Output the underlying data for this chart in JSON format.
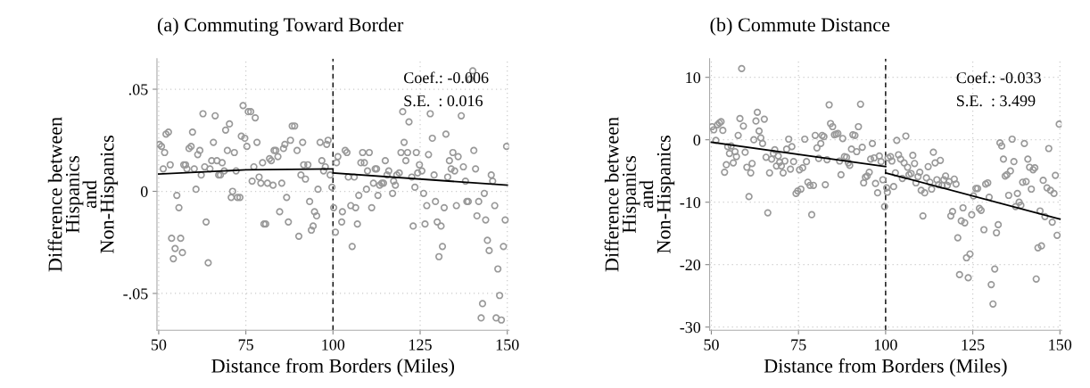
{
  "chart_data": [
    {
      "type": "scatter",
      "title": "(a) Commuting Toward Border",
      "xlabel": "Distance from Borders (Miles)",
      "ylabel": "Difference between\nHispanics\nand\nNon-Hispanics",
      "xlim": [
        49.5,
        150.5
      ],
      "ylim": [
        -0.068,
        0.065
      ],
      "xticks": [
        50,
        75,
        100,
        125,
        150
      ],
      "yticks": [
        {
          "value": 0.05,
          "label": ".05"
        },
        0,
        {
          "value": -0.05,
          "label": "-.05"
        }
      ],
      "grid": true,
      "annotations": [
        "Coef.: -0.006",
        "S.E.  : 0.016"
      ],
      "ref_lines": [
        {
          "axis": "x",
          "value": 100,
          "color": "#000000",
          "line_style": "dashed"
        }
      ],
      "series": [
        {
          "color": "#999999",
          "marker": "circle",
          "x": [
            50.2,
            50.8,
            51.3,
            51.7,
            52.1,
            52.8,
            53.3,
            53.7,
            54.7,
            54.2,
            55.2,
            55.8,
            56.3,
            56.8,
            57.2,
            57.7,
            58.1,
            58.7,
            59.3,
            59.7,
            60.2,
            60.7,
            61.2,
            61.8,
            62.2,
            62.7,
            63.2,
            63.6,
            64.2,
            64.7,
            65.2,
            65.7,
            66.2,
            66.7,
            67.2,
            67.7,
            68.2,
            68.8,
            69.2,
            69.7,
            70.3,
            70.8,
            71.2,
            71.7,
            72.2,
            72.6,
            73.3,
            73.7,
            74.2,
            74.7,
            75.3,
            75.7,
            76.4,
            76.8,
            77.3,
            77.7,
            78.2,
            78.8,
            79.3,
            79.8,
            80.2,
            80.7,
            81.2,
            81.8,
            82.3,
            82.8,
            83.1,
            83.6,
            84.2,
            84.7,
            85.3,
            85.8,
            86.2,
            86.7,
            87.2,
            87.8,
            88.3,
            89.0,
            89.7,
            90.2,
            90.8,
            91.3,
            91.6,
            92.1,
            92.8,
            93.3,
            93.8,
            94.3,
            94.7,
            95.3,
            95.7,
            96.3,
            96.8,
            97.3,
            97.8,
            98.2,
            98.6,
            99.2,
            99.7,
            100.2,
            100.7,
            101.4,
            101.0,
            102.7,
            102.5,
            103.5,
            104.0,
            104.4,
            105.1,
            105.5,
            106.1,
            106.5,
            107.0,
            107.4,
            108.0,
            108.5,
            109.0,
            109.6,
            109.9,
            110.4,
            111.1,
            111.6,
            112.1,
            112.5,
            112.9,
            113.4,
            114.0,
            114.5,
            115.0,
            115.5,
            116.0,
            117.1,
            117.4,
            117.9,
            118.3,
            119.0,
            119.5,
            120.0,
            120.4,
            120.9,
            121.4,
            121.8,
            122.6,
            123.0,
            123.5,
            123.9,
            124.3,
            124.8,
            125.5,
            126.0,
            126.4,
            126.9,
            127.4,
            127.9,
            128.5,
            129.0,
            129.4,
            129.9,
            130.4,
            131.0,
            131.4,
            131.9,
            132.4,
            132.9,
            133.4,
            133.9,
            134.4,
            134.9,
            135.4,
            135.9,
            136.8,
            137.4,
            138.0,
            138.4,
            138.8,
            139.3,
            140.1,
            140.4,
            140.9,
            141.3,
            141.8,
            142.5,
            142.9,
            143.4,
            143.8,
            144.3,
            144.8,
            145.4,
            145.8,
            146.4,
            146.8,
            147.3,
            147.8,
            148.3,
            148.9,
            149.4,
            149.8
          ],
          "values": [
            0.023,
            0.022,
            0.011,
            0.019,
            0.028,
            0.029,
            0.013,
            -0.023,
            -0.028,
            -0.033,
            -0.002,
            -0.008,
            -0.023,
            -0.03,
            0.013,
            0.013,
            0.011,
            0.021,
            0.022,
            0.029,
            0.011,
            0.001,
            0.018,
            0.02,
            0.008,
            0.038,
            0.012,
            -0.015,
            -0.035,
            0.011,
            0.015,
            0.024,
            0.037,
            0.015,
            0.008,
            0.008,
            0.014,
            0.01,
            0.03,
            0.02,
            0.033,
            -0.003,
            0.0,
            0.019,
            0.01,
            -0.003,
            -0.003,
            0.027,
            0.042,
            0.026,
            0.022,
            0.039,
            0.039,
            0.005,
            0.012,
            0.036,
            0.024,
            0.007,
            0.004,
            0.014,
            -0.016,
            -0.016,
            0.004,
            0.016,
            0.015,
            0.003,
            0.02,
            0.02,
            0.017,
            -0.01,
            0.004,
            0.021,
            0.023,
            -0.003,
            -0.015,
            0.025,
            0.032,
            0.032,
            0.02,
            -0.022,
            0.008,
            0.024,
            0.013,
            0.006,
            0.013,
            -0.005,
            -0.019,
            -0.017,
            -0.01,
            -0.012,
            0.001,
            0.024,
            0.015,
            0.01,
            0.012,
            0.023,
            0.025,
            0.008,
            0.002,
            -0.008,
            -0.02,
            0.017,
            0.014,
            -0.01,
            -0.015,
            0.02,
            0.019,
            0.007,
            -0.007,
            -0.027,
            0.007,
            -0.008,
            -0.016,
            -0.002,
            0.014,
            0.019,
            0.014,
            0.001,
            0.01,
            0.019,
            -0.008,
            0.004,
            0.011,
            0.011,
            -0.002,
            0.003,
            0.004,
            0.004,
            0.015,
            0.008,
            0.01,
            -0.001,
            0.005,
            0.003,
            0.008,
            0.009,
            0.019,
            0.039,
            0.024,
            0.015,
            0.019,
            0.034,
            0.007,
            -0.017,
            0.002,
            0.019,
            0.009,
            0.013,
            0.01,
            -0.001,
            -0.016,
            -0.007,
            0.018,
            0.038,
            0.026,
            0.008,
            -0.005,
            -0.015,
            -0.032,
            -0.017,
            -0.027,
            -0.008,
            0.028,
            0.007,
            0.015,
            0.011,
            0.019,
            0.01,
            -0.007,
            0.017,
            0.037,
            0.012,
            0.005,
            -0.005,
            -0.005,
            0.055,
            0.059,
            0.02,
            0.011,
            -0.012,
            -0.005,
            -0.062,
            -0.055,
            -0.001,
            -0.014,
            -0.024,
            -0.029,
            0.008,
            0.005,
            -0.007,
            -0.062,
            -0.038,
            -0.051,
            -0.063,
            -0.027,
            -0.014,
            0.022
          ]
        },
        {
          "type": "line",
          "color": "#000000",
          "x": [
            50,
            75,
            100
          ],
          "values": [
            0.0085,
            0.0105,
            0.011
          ]
        },
        {
          "type": "line",
          "color": "#000000",
          "x": [
            100,
            150
          ],
          "values": [
            0.009,
            0.003
          ]
        }
      ]
    },
    {
      "type": "scatter",
      "title": "(b) Commute Distance",
      "xlabel": "Distance from Borders (Miles)",
      "ylabel": "Difference between\nHispanics\nand\nNon-Hispanics",
      "xlim": [
        49.5,
        150.5
      ],
      "ylim": [
        -30.5,
        13
      ],
      "xticks": [
        50,
        75,
        100,
        125,
        150
      ],
      "yticks": [
        10,
        0,
        -10,
        -20,
        -30
      ],
      "grid": true,
      "annotations": [
        "Coef.: -0.033",
        "S.E.  : 3.499"
      ],
      "ref_lines": [
        {
          "axis": "x",
          "value": 100,
          "color": "#000000",
          "line_style": "dashed"
        }
      ],
      "series": [
        {
          "color": "#999999",
          "marker": "circle",
          "x": [
            50.2,
            50.7,
            51.3,
            51.8,
            52.3,
            52.8,
            53.3,
            53.8,
            54.3,
            54.7,
            55.2,
            55.7,
            56.3,
            56.8,
            57.2,
            57.7,
            58.2,
            58.7,
            59.2,
            59.7,
            60.2,
            60.8,
            61.3,
            61.7,
            62.2,
            62.8,
            63.2,
            63.7,
            64.2,
            64.7,
            65.2,
            65.7,
            66.2,
            66.7,
            67.3,
            67.8,
            68.2,
            68.7,
            69.2,
            69.6,
            70.1,
            70.6,
            71.1,
            71.6,
            72.2,
            72.7,
            73.1,
            73.6,
            74.3,
            74.8,
            75.3,
            75.7,
            76.2,
            76.8,
            77.3,
            77.7,
            78.3,
            78.8,
            79.3,
            79.8,
            80.3,
            80.8,
            81.4,
            81.8,
            82.3,
            82.7,
            83.2,
            83.8,
            84.2,
            84.8,
            85.3,
            85.8,
            86.3,
            86.8,
            87.2,
            87.7,
            88.2,
            88.8,
            89.3,
            89.7,
            90.2,
            90.6,
            91.2,
            91.7,
            92.2,
            92.8,
            93.3,
            93.7,
            94.2,
            94.7,
            95.3,
            95.7,
            96.2,
            96.7,
            97.1,
            97.7,
            98.2,
            98.7,
            99.2,
            99.7,
            100.3,
            100.5,
            100.7,
            101.4,
            101.8,
            102.3,
            102.8,
            103.2,
            103.7,
            104.3,
            104.8,
            105.3,
            105.8,
            106.3,
            106.7,
            107.3,
            107.8,
            108.3,
            108.7,
            109.3,
            109.8,
            110.2,
            110.7,
            111.2,
            111.7,
            112.2,
            112.7,
            113.2,
            113.7,
            114.2,
            114.7,
            115.2,
            115.7,
            116.2,
            116.7,
            117.2,
            117.7,
            118.2,
            118.7,
            119.2,
            119.7,
            120.2,
            120.7,
            121.2,
            121.7,
            122.2,
            122.7,
            123.2,
            123.7,
            124.2,
            124.7,
            125.2,
            125.9,
            126.4,
            126.9,
            127.4,
            128.2,
            128.7,
            129.3,
            129.7,
            130.3,
            130.8,
            131.3,
            131.8,
            132.3,
            132.8,
            133.3,
            133.8,
            134.3,
            134.8,
            135.3,
            135.8,
            136.3,
            136.8,
            137.3,
            137.8,
            138.3,
            138.8,
            139.3,
            139.8,
            140.3,
            140.8,
            141.3,
            141.8,
            142.3,
            142.8,
            143.2,
            143.7,
            144.3,
            144.7,
            145.2,
            145.7,
            146.3,
            146.8,
            147.3,
            147.8,
            148.3,
            148.7,
            149.2,
            149.8
          ],
          "values": [
            2.1,
            1.6,
            -0.1,
            2.4,
            2.7,
            2.9,
            1.5,
            -5.2,
            -4.0,
            -1.1,
            -2.2,
            -1.0,
            -3.7,
            -1.9,
            -2.7,
            0.7,
            3.4,
            11.4,
            2.2,
            -2.0,
            -4.4,
            -9.1,
            -5.3,
            -3.8,
            0.0,
            3.0,
            4.4,
            1.4,
            0.3,
            -0.6,
            3.3,
            -2.8,
            -11.7,
            -5.3,
            -3.1,
            -2.2,
            -1.6,
            -4.2,
            -2.6,
            -3.6,
            -4.2,
            -5.3,
            -3.4,
            -1.5,
            0.1,
            -4.7,
            -1.1,
            -3.5,
            -8.6,
            -8.2,
            -4.8,
            -7.9,
            -4.5,
            0.1,
            -3.5,
            -6.8,
            -7.3,
            -12.0,
            -7.3,
            0.7,
            -1.3,
            -3.0,
            -0.6,
            0.7,
            0.5,
            -7.2,
            -3.2,
            5.6,
            2.6,
            2.1,
            0.8,
            0.9,
            1.0,
            -3.4,
            -5.6,
            0.2,
            -2.7,
            -2.8,
            -3.7,
            -4.1,
            -1.5,
            0.8,
            0.7,
            -1.9,
            2.1,
            5.7,
            -1.2,
            -6.9,
            -6.0,
            -5.8,
            -5.2,
            -3.1,
            -0.6,
            -2.9,
            -7.0,
            -8.5,
            -2.6,
            -3.5,
            -6.4,
            -10.7,
            -7.7,
            -8.4,
            -2.9,
            -2.7,
            -3.4,
            -7.5,
            -5.3,
            -0.1,
            -2.4,
            -3.1,
            -6.2,
            -3.7,
            0.6,
            -4.4,
            -5.6,
            -5.4,
            -2.5,
            -3.8,
            -6.9,
            -5.9,
            -5.2,
            -8.1,
            -12.2,
            -8.5,
            -6.1,
            -4.3,
            -6.8,
            -7.9,
            -2.0,
            -3.7,
            -6.4,
            -7.2,
            -3.3,
            -7.3,
            -6.4,
            -5.8,
            -7.3,
            -6.7,
            -12.2,
            -11.5,
            -6.3,
            -7.1,
            -15.7,
            -21.6,
            -13.0,
            -10.9,
            -13.3,
            -18.9,
            -22.1,
            -18.3,
            -12.0,
            -9.0,
            -7.8,
            -7.8,
            -11.0,
            -11.3,
            -14.4,
            -7.1,
            -6.9,
            -9.2,
            -23.2,
            -26.3,
            -20.7,
            -14.9,
            -13.6,
            -0.5,
            -1.0,
            -3.1,
            -5.8,
            -5.6,
            -8.9,
            -5.0,
            0.1,
            -3.5,
            -10.7,
            -8.6,
            -10.0,
            -10.5,
            -6.8,
            -0.6,
            -6.7,
            -3.1,
            -4.4,
            -7.9,
            -4.8,
            -4.5,
            -22.3,
            -17.3,
            -11.4,
            -17.0,
            -6.5,
            -12.3,
            -7.7,
            -1.4,
            -8.1,
            -13.2,
            -8.6,
            -5.7,
            -15.3,
            2.5
          ]
        },
        {
          "type": "line",
          "color": "#000000",
          "x": [
            50,
            100
          ],
          "values": [
            -0.4,
            -4.3
          ]
        },
        {
          "type": "line",
          "color": "#000000",
          "x": [
            100,
            150
          ],
          "values": [
            -5.3,
            -12.7
          ]
        }
      ]
    }
  ]
}
